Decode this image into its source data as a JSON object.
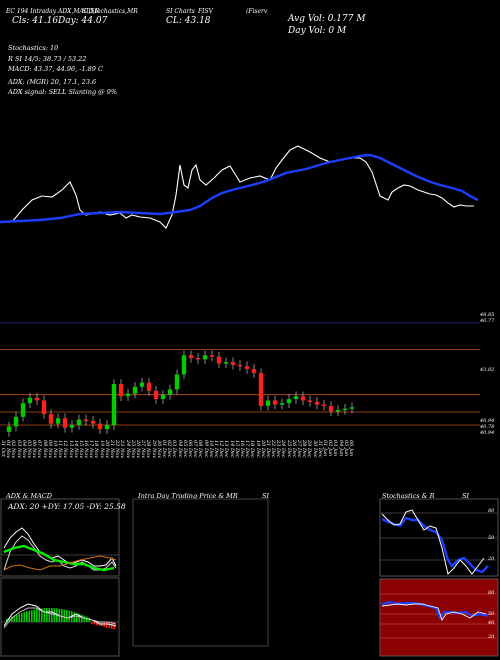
{
  "header": {
    "line1": "EC 194 Intraday ADX,MACD,R",
    "line1b": "SI,Stochastics,MR",
    "line1c": "SI Charts",
    "line1d": "FISV",
    "line1e": "(Fiserv",
    "line2a": "Cls: 41.16",
    "line2b": "Day: 44.07",
    "line2c": "CL: 43.18",
    "avg_vol": "Avg Vol: 0.177 M",
    "day_vol": "Day Vol: 0   M"
  },
  "info": {
    "stoch": "Stochastics: 10",
    "rsi": "R               SI 14/5: 38.73 / 53.22",
    "macd": "MACD: 43.37, 44.96, -1.89 C",
    "adx": "ADX:                    (MGR) 20, 17.1, 23.6",
    "signal": "ADX  signal: SELL  Slanting @ 9%"
  },
  "price_labels": [
    "48.85",
    "46.77",
    "43.02",
    "40.94",
    "40.78",
    "40.94"
  ],
  "date_labels": [
    "31 Oct",
    "01 Nov",
    "02 Nov",
    "03 Nov",
    "04 Nov",
    "05 Nov",
    "06 Nov",
    "07 Nov",
    "08 Nov",
    "09 Nov",
    "10 Nov",
    "11 Nov",
    "12 Nov",
    "13 Nov",
    "14 Nov",
    "15 Nov",
    "16 Nov",
    "17 Nov",
    "18 Nov",
    "19 Nov",
    "20 Nov",
    "21 Nov",
    "22 Nov",
    "23 Nov",
    "24 Nov",
    "25 Nov",
    "26 Nov",
    "27 Nov",
    "28 Nov",
    "29 Nov",
    "30 Nov",
    "01 Dec",
    "02 Dec",
    "03 Dec",
    "04 Dec",
    "05 Dec",
    "06 Dec",
    "07 Dec",
    "08 Dec",
    "09 Dec",
    "10 Dec",
    "11 Dec",
    "12 Dec",
    "13 Dec",
    "14 Dec",
    "15 Dec",
    "16 Dec",
    "17 Dec",
    "18 Dec",
    "19 Dec",
    "20 Dec",
    "21 Dec",
    "22 Dec",
    "23 Dec",
    "24 Dec",
    "25 Dec",
    "26 Dec",
    "27 Dec",
    "28 Dec",
    "29 Dec",
    "30 Dec",
    "31 Dec",
    "01 Jan",
    "02 Jan",
    "03 Jan",
    "04 Jan",
    "05 Jan",
    "06 Jan"
  ],
  "panels": {
    "adx_title": "ADX  & MACD",
    "adx_values": "ADX: 20  +DY: 17.05  -DY: 25.58",
    "intra_title": "Intra  Day Trading Price  & MR",
    "intra_title_b": "SI",
    "stoch_title": "Stochastics & R",
    "stoch_title_b": "SI",
    "stoch_ticks": [
      "80",
      "50",
      "20"
    ],
    "rsi_ticks": [
      "80",
      "50",
      "40",
      "20"
    ]
  },
  "colors": {
    "up": "#00cc00",
    "down": "#ff2020",
    "ma": "#1a3fff",
    "level_line": "#c05010",
    "rsi_bg": "#8b0000"
  },
  "chart_data": {
    "type": "candlestick",
    "series": [
      {
        "name": "close",
        "values": [
          40.7,
          41.4,
          42.4,
          42.8,
          42.6,
          41.6,
          40.9,
          41.3,
          40.6,
          40.8,
          41.2,
          41.1,
          40.9,
          40.5,
          40.8,
          43.8,
          42.9,
          43.1,
          43.6,
          43.9,
          43.3,
          42.7,
          43.0,
          43.4,
          44.5,
          45.9,
          45.7,
          45.6,
          45.9,
          45.8,
          45.3,
          45.4,
          45.2,
          45.1,
          44.9,
          44.6,
          42.2,
          42.6,
          42.3,
          42.4,
          42.7,
          42.9,
          42.6,
          42.5,
          42.3,
          42.2,
          41.8,
          41.9,
          42.0,
          42.1
        ]
      },
      {
        "name": "ma",
        "values": [
          22,
          21,
          21,
          22,
          22,
          23,
          23,
          24,
          24,
          25,
          26,
          28,
          30,
          32,
          33,
          33,
          32,
          31,
          30,
          30,
          30,
          29,
          29
        ]
      }
    ],
    "price_levels": [
      48.85,
      46.77,
      43.02,
      40.94,
      40.78
    ]
  }
}
